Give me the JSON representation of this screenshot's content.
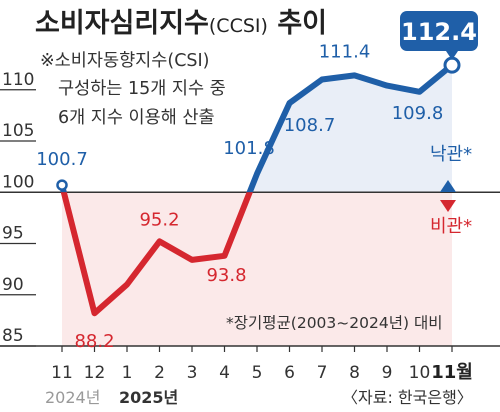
{
  "chart_data": {
    "type": "line",
    "title": "소비자심리지수",
    "title_suffix": "(CCSI)",
    "title_tail": " 추이",
    "note_lines": [
      "※소비자동향지수(CSI)",
      "구성하는 15개 지수 중",
      "6개 지수 이용해 산출"
    ],
    "categories": [
      "11",
      "12",
      "1",
      "2",
      "3",
      "4",
      "5",
      "6",
      "7",
      "8",
      "9",
      "10",
      "11월"
    ],
    "year_labels": [
      "2024년",
      "2025년"
    ],
    "values": [
      100.7,
      88.2,
      91.0,
      95.2,
      93.4,
      93.8,
      101.8,
      108.7,
      111.0,
      111.4,
      110.4,
      109.8,
      112.4
    ],
    "data_labels": [
      {
        "index": 0,
        "text": "100.7"
      },
      {
        "index": 1,
        "text": "88.2"
      },
      {
        "index": 3,
        "text": "95.2"
      },
      {
        "index": 5,
        "text": "93.8"
      },
      {
        "index": 6,
        "text": "101.8"
      },
      {
        "index": 7,
        "text": "108.7"
      },
      {
        "index": 9,
        "text": "111.4"
      },
      {
        "index": 11,
        "text": "109.8"
      }
    ],
    "highlight": {
      "index": 12,
      "text": "112.4"
    },
    "yticks": [
      85,
      90,
      95,
      100,
      105,
      110
    ],
    "ylim": [
      85,
      113
    ],
    "baseline": 100,
    "above_label": "낙관*",
    "below_label": "비관*",
    "footnote": "*장기평균(2003~2024년) 대비",
    "source": "〈자료: 한국은행〉",
    "colors": {
      "above": "#1f5fa8",
      "below": "#d5272f",
      "above_fill": "#e9eef7",
      "below_fill": "#fbe9e9",
      "axis": "#333333"
    }
  }
}
